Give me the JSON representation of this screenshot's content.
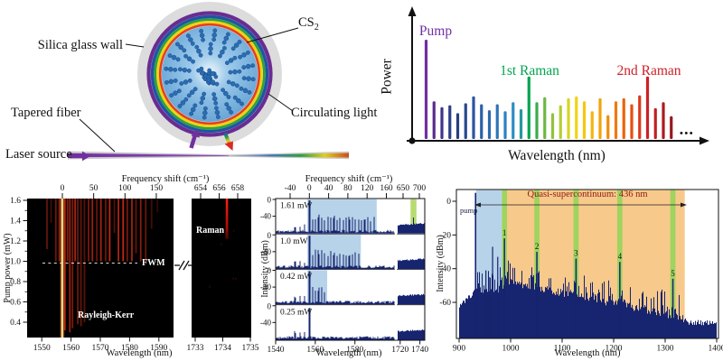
{
  "panels": {
    "resonator_diagram": {
      "labels": {
        "silica_wall": "Silica glass wall",
        "cs2_main": "CS",
        "cs2_sub": "2",
        "circulating_light": "Circulating light",
        "tapered_fiber": "Tapered fiber",
        "laser_source": "Laser source"
      }
    }
  },
  "chart_data": [
    {
      "id": "comb_schematic",
      "type": "bar",
      "xlabel": "Wavelength (nm)",
      "ylabel": "Power",
      "dots": "•••",
      "annotations": [
        {
          "text": "Pump",
          "color": "#7030a0",
          "bar_index": 0
        },
        {
          "text": "1st Raman",
          "color": "#00a550",
          "bar_index": 13
        },
        {
          "text": "2nd Raman",
          "color": "#cc2128",
          "bar_index": 28
        }
      ],
      "bars": [
        [
          1.0,
          "#7030a0"
        ],
        [
          0.38,
          "#5b2c8a"
        ],
        [
          0.32,
          "#3f3488"
        ],
        [
          0.34,
          "#2c3e87"
        ],
        [
          0.26,
          "#273f80"
        ],
        [
          0.36,
          "#27498e"
        ],
        [
          0.43,
          "#2b549c"
        ],
        [
          0.35,
          "#2c5fa8"
        ],
        [
          0.29,
          "#2e69b0"
        ],
        [
          0.35,
          "#2e74b8"
        ],
        [
          0.28,
          "#2f80c0"
        ],
        [
          0.37,
          "#2d8cc0"
        ],
        [
          0.3,
          "#25989e"
        ],
        [
          0.63,
          "#00a550"
        ],
        [
          0.37,
          "#3aad49"
        ],
        [
          0.42,
          "#6cb843"
        ],
        [
          0.26,
          "#94c23c"
        ],
        [
          0.34,
          "#b5cd33"
        ],
        [
          0.41,
          "#d6d522"
        ],
        [
          0.43,
          "#f0d512"
        ],
        [
          0.38,
          "#f7c710"
        ],
        [
          0.28,
          "#f5b50d"
        ],
        [
          0.41,
          "#f3a30b"
        ],
        [
          0.24,
          "#f08d08"
        ],
        [
          0.38,
          "#ee7a06"
        ],
        [
          0.41,
          "#ec6305"
        ],
        [
          0.35,
          "#e74e0f"
        ],
        [
          0.44,
          "#da3a1c"
        ],
        [
          0.63,
          "#cc2128"
        ],
        [
          0.31,
          "#c01e24"
        ],
        [
          0.37,
          "#ad1a1f"
        ],
        [
          0.23,
          "#97171b"
        ]
      ]
    },
    {
      "id": "power_evolution_map",
      "type": "heatmap",
      "top_axis_label": "Frequency shift (cm⁻¹)",
      "top_ticks_left": [
        0,
        50,
        100,
        150
      ],
      "top_ticks_right": [
        654,
        656,
        658
      ],
      "ylabel": "Pump power (mW)",
      "yticks": [
        1.6,
        1.4,
        1.2,
        1.0,
        0.8,
        0.6,
        0.4
      ],
      "xlabel": "Wavelength (nm)",
      "xticks_left": [
        1550,
        1560,
        1570,
        1580,
        1590
      ],
      "xticks_right": [
        1733,
        1734,
        1735
      ],
      "xlim_left_nm": [
        1545,
        1595
      ],
      "xlim_right_nm": [
        1732.9,
        1735.0
      ],
      "ylim_mw": [
        0.25,
        1.6
      ],
      "region_labels": {
        "fwm": "FWM",
        "rayleigh_kerr": "Rayleigh-Kerr",
        "raman": "Raman"
      },
      "fwm_threshold_mw": 1.0,
      "pump_line_nm": 1557,
      "raman_line": {
        "nm": 1734.15,
        "visible_down_to_mw": 1.22
      },
      "lines": [
        [
          1551.8,
          1.12,
          0.45
        ],
        [
          1553.2,
          1.38,
          0.3
        ],
        [
          1554.8,
          1.0,
          0.5
        ],
        [
          1556.0,
          1.0,
          0.65
        ],
        [
          1557.9,
          0.32,
          0.8
        ],
        [
          1558.8,
          1.0,
          0.6
        ],
        [
          1559.6,
          0.3,
          0.7
        ],
        [
          1560.5,
          0.34,
          0.55
        ],
        [
          1561.4,
          1.0,
          0.75
        ],
        [
          1562.3,
          0.38,
          0.5
        ],
        [
          1563.4,
          0.36,
          0.45
        ],
        [
          1564.6,
          0.4,
          0.4
        ],
        [
          1566.0,
          1.0,
          0.55
        ],
        [
          1567.3,
          1.0,
          0.7
        ],
        [
          1568.8,
          1.0,
          0.45
        ],
        [
          1570.2,
          1.0,
          0.75
        ],
        [
          1571.8,
          1.0,
          0.5
        ],
        [
          1573.2,
          1.0,
          0.85
        ],
        [
          1574.8,
          1.28,
          0.38
        ],
        [
          1576.2,
          1.0,
          0.78
        ],
        [
          1577.8,
          1.0,
          0.88
        ],
        [
          1579.2,
          1.0,
          0.55
        ],
        [
          1580.8,
          1.0,
          0.72
        ],
        [
          1582.2,
          1.08,
          0.45
        ],
        [
          1583.8,
          1.0,
          0.62
        ],
        [
          1585.5,
          1.0,
          0.48
        ],
        [
          1587.5,
          1.32,
          0.3
        ],
        [
          1589.5,
          1.48,
          0.22
        ]
      ]
    },
    {
      "id": "power_spectra",
      "type": "line",
      "top_axis_label": "Frequency shift (cm⁻¹)",
      "top_ticks_left": [
        -40,
        0,
        40,
        80,
        120,
        160
      ],
      "top_ticks_right": [
        650,
        700
      ],
      "ylabel": "Intensity (dBm)",
      "subpanel_yticks": [
        0,
        -40
      ],
      "xlabel": "Wavelength (nm)",
      "xticks_left": [
        1540,
        1560,
        1580
      ],
      "xticks_right": [
        1720,
        1740
      ],
      "xlim_left_nm": [
        1540,
        1600
      ],
      "xlim_right_nm": [
        1717,
        1745
      ],
      "ylim_dbm": [
        0,
        -80
      ],
      "pump_nm": 1557,
      "subpanels": [
        {
          "label": "1.61 mW",
          "blue_band_nm": [
            1556,
            1591
          ],
          "green_band_nm": [
            1730.5,
            1736.5
          ],
          "comb_end_nm": 1591,
          "raman_peak": {
            "nm": 1733.5,
            "dbm": -43
          }
        },
        {
          "label": "1.0 mW",
          "blue_band_nm": [
            1556,
            1583
          ],
          "comb_end_nm": 1583
        },
        {
          "label": "0.42 mW",
          "blue_band_nm": [
            1556,
            1566
          ],
          "comb_end_nm": 1566
        },
        {
          "label": "0.25 mW"
        }
      ]
    },
    {
      "id": "supercontinuum",
      "type": "line",
      "annotation": "Quasi-supercontinuum: 436 nm",
      "annotation_color": "#8b2015",
      "pump": {
        "label": "pump",
        "nm": 932,
        "dbm": 5
      },
      "numbered_peaks": [
        {
          "label": "1",
          "nm": 988,
          "dbm": -22
        },
        {
          "label": "2",
          "nm": 1051,
          "dbm": -30
        },
        {
          "label": "3",
          "nm": 1127,
          "dbm": -34
        },
        {
          "label": "4",
          "nm": 1212,
          "dbm": -36
        },
        {
          "label": "5",
          "nm": 1315,
          "dbm": -46
        }
      ],
      "minor_peaks": [
        [
          952,
          -41
        ],
        [
          958,
          -45
        ],
        [
          965,
          -27
        ],
        [
          975,
          -33
        ]
      ],
      "bands": {
        "blue_nm": [
          933,
          983
        ],
        "orange_nm": [
          992,
          1338
        ],
        "green_halfwidth_nm": 5
      },
      "ylabel": "Intensity (dBm)",
      "yticks": [
        0,
        -20,
        -40,
        -60
      ],
      "xlabel": "Wavelength (nm)",
      "xticks": [
        900,
        1000,
        1100,
        1200,
        1300,
        1400
      ],
      "xlim": [
        900,
        1400
      ],
      "ylim": [
        -81,
        7
      ]
    }
  ],
  "colors": {
    "spectrum_navy": "#17246f",
    "heat_red": "#d83018",
    "pump_orange": "#ffb347",
    "band_blue": "#b7d3ea",
    "band_orange": "#f7c98b",
    "band_green": "#9ed45f",
    "cs2_fill": "#7db5e0"
  }
}
